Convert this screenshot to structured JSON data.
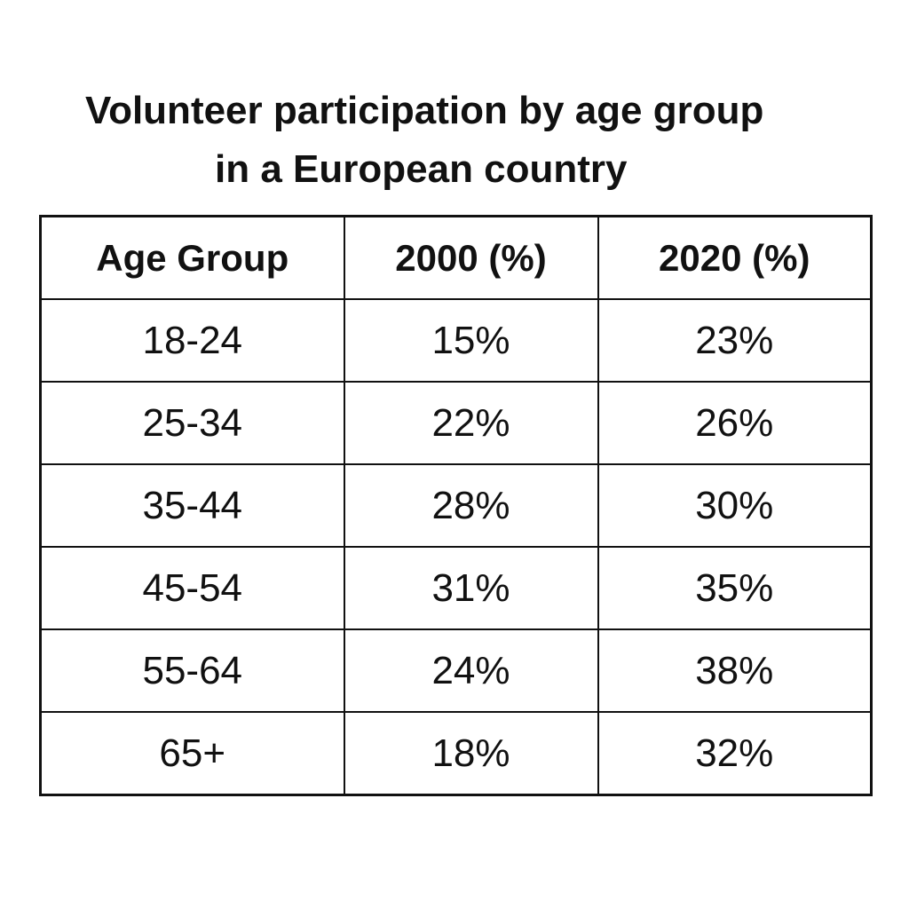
{
  "chart_data": {
    "type": "table",
    "title": "Volunteer participation by age group in a European country",
    "title_lines": [
      "Volunteer participation by age group",
      "in a European country"
    ],
    "columns": [
      "Age Group",
      "2000 (%)",
      "2020 (%)"
    ],
    "rows": [
      [
        "18-24",
        "15%",
        "23%"
      ],
      [
        "25-34",
        "22%",
        "26%"
      ],
      [
        "35-44",
        "28%",
        "30%"
      ],
      [
        "45-54",
        "31%",
        "35%"
      ],
      [
        "55-64",
        "24%",
        "38%"
      ],
      [
        "65+",
        "18%",
        "32%"
      ]
    ],
    "categories": [
      "18-24",
      "25-34",
      "35-44",
      "45-54",
      "55-64",
      "65+"
    ],
    "series": [
      {
        "name": "2000 (%)",
        "values": [
          15,
          22,
          28,
          31,
          24,
          18
        ]
      },
      {
        "name": "2020 (%)",
        "values": [
          23,
          26,
          30,
          35,
          38,
          32
        ]
      }
    ],
    "colors": {
      "text": "#111111",
      "border": "#111111",
      "background": "#ffffff"
    }
  }
}
